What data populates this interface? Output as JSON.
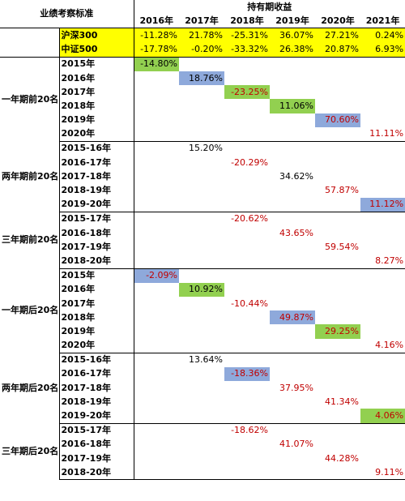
{
  "header": {
    "category_label": "业绩考察标准",
    "holding_title": "持有期收益",
    "years": [
      "2016年",
      "2017年",
      "2018年",
      "2019年",
      "2020年",
      "2021年"
    ]
  },
  "benchmarks": [
    {
      "name": "沪深300",
      "values": [
        "-11.28%",
        "21.78%",
        "-25.31%",
        "36.07%",
        "27.21%",
        "0.24%"
      ]
    },
    {
      "name": "中证500",
      "values": [
        "-17.78%",
        "-0.20%",
        "-33.32%",
        "26.38%",
        "20.87%",
        "6.93%"
      ]
    }
  ],
  "groups": [
    {
      "label": "一年期前20名",
      "rows": [
        {
          "period": "2015年",
          "col": 0,
          "value": "-14.80%",
          "color": "black",
          "fill": "green"
        },
        {
          "period": "2016年",
          "col": 1,
          "value": "18.76%",
          "color": "black",
          "fill": "blue"
        },
        {
          "period": "2017年",
          "col": 2,
          "value": "-23.25%",
          "color": "red",
          "fill": "green"
        },
        {
          "period": "2018年",
          "col": 3,
          "value": "11.06%",
          "color": "black",
          "fill": "green"
        },
        {
          "period": "2019年",
          "col": 4,
          "value": "70.60%",
          "color": "red",
          "fill": "blue"
        },
        {
          "period": "2020年",
          "col": 5,
          "value": "11.11%",
          "color": "red",
          "fill": "none"
        }
      ]
    },
    {
      "label": "两年期前20名",
      "rows": [
        {
          "period": "2015-16年",
          "col": 1,
          "value": "15.20%",
          "color": "black",
          "fill": "none"
        },
        {
          "period": "2016-17年",
          "col": 2,
          "value": "-20.29%",
          "color": "red",
          "fill": "none"
        },
        {
          "period": "2017-18年",
          "col": 3,
          "value": "34.62%",
          "color": "black",
          "fill": "none"
        },
        {
          "period": "2018-19年",
          "col": 4,
          "value": "57.87%",
          "color": "red",
          "fill": "none"
        },
        {
          "period": "2019-20年",
          "col": 5,
          "value": "11.12%",
          "color": "red",
          "fill": "blue"
        }
      ]
    },
    {
      "label": "三年期前20名",
      "rows": [
        {
          "period": "2015-17年",
          "col": 2,
          "value": "-20.62%",
          "color": "red",
          "fill": "none"
        },
        {
          "period": "2016-18年",
          "col": 3,
          "value": "43.65%",
          "color": "red",
          "fill": "none"
        },
        {
          "period": "2017-19年",
          "col": 4,
          "value": "59.54%",
          "color": "red",
          "fill": "none"
        },
        {
          "period": "2018-20年",
          "col": 5,
          "value": "8.27%",
          "color": "red",
          "fill": "none"
        }
      ]
    },
    {
      "label": "一年期后20名",
      "rows": [
        {
          "period": "2015年",
          "col": 0,
          "value": "-2.09%",
          "color": "red",
          "fill": "blue"
        },
        {
          "period": "2016年",
          "col": 1,
          "value": "10.92%",
          "color": "black",
          "fill": "green"
        },
        {
          "period": "2017年",
          "col": 2,
          "value": "-10.44%",
          "color": "red",
          "fill": "none"
        },
        {
          "period": "2018年",
          "col": 3,
          "value": "49.87%",
          "color": "red",
          "fill": "blue"
        },
        {
          "period": "2019年",
          "col": 4,
          "value": "29.25%",
          "color": "red",
          "fill": "green"
        },
        {
          "period": "2020年",
          "col": 5,
          "value": "4.16%",
          "color": "red",
          "fill": "none"
        }
      ]
    },
    {
      "label": "两年期后20名",
      "rows": [
        {
          "period": "2015-16年",
          "col": 1,
          "value": "13.64%",
          "color": "black",
          "fill": "none"
        },
        {
          "period": "2016-17年",
          "col": 2,
          "value": "-18.36%",
          "color": "red",
          "fill": "blue"
        },
        {
          "period": "2017-18年",
          "col": 3,
          "value": "37.95%",
          "color": "red",
          "fill": "none"
        },
        {
          "period": "2018-19年",
          "col": 4,
          "value": "41.34%",
          "color": "red",
          "fill": "none"
        },
        {
          "period": "2019-20年",
          "col": 5,
          "value": "4.06%",
          "color": "red",
          "fill": "green"
        }
      ]
    },
    {
      "label": "三年期后20名",
      "rows": [
        {
          "period": "2015-17年",
          "col": 2,
          "value": "-18.62%",
          "color": "red",
          "fill": "none"
        },
        {
          "period": "2016-18年",
          "col": 3,
          "value": "41.07%",
          "color": "red",
          "fill": "none"
        },
        {
          "period": "2017-19年",
          "col": 4,
          "value": "44.28%",
          "color": "red",
          "fill": "none"
        },
        {
          "period": "2018-20年",
          "col": 5,
          "value": "9.11%",
          "color": "red",
          "fill": "none"
        }
      ]
    }
  ]
}
